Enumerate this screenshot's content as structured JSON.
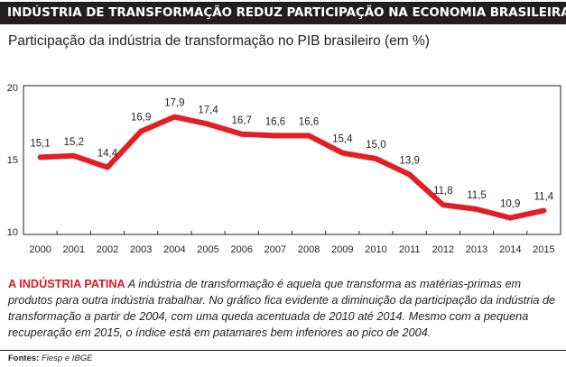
{
  "header": {
    "title": "INDÚSTRIA DE TRANSFORMAÇÃO REDUZ PARTICIPAÇÃO NA ECONOMIA BRASILEIRA"
  },
  "chart_data": {
    "type": "line",
    "title": "Participação da indústria de transformação no PIB brasileiro (em %)",
    "x": [
      "2000",
      "2001",
      "2002",
      "2003",
      "2004",
      "2005",
      "2006",
      "2007",
      "2008",
      "2009",
      "2010",
      "2011",
      "2012",
      "2013",
      "2014",
      "2015"
    ],
    "series": [
      {
        "values": [
          15.1,
          15.2,
          14.4,
          16.9,
          17.9,
          17.4,
          16.7,
          16.6,
          16.6,
          15.4,
          15.0,
          13.9,
          11.8,
          11.5,
          10.9,
          11.4
        ],
        "labels": [
          "15,1",
          "15,2",
          "14,4",
          "16,9",
          "17,9",
          "17,4",
          "16,7",
          "16,6",
          "16,6",
          "15,4",
          "15,0",
          "13,9",
          "11,8",
          "11,5",
          "10,9",
          "11,4"
        ]
      }
    ],
    "yticks": [
      {
        "value": 20,
        "label": "20"
      },
      {
        "value": 15,
        "label": "15"
      },
      {
        "value": 10,
        "label": "10"
      }
    ],
    "ylim": [
      10,
      20
    ],
    "grid": false,
    "line_color": "#e31e24"
  },
  "caption": {
    "lead": "A INDÚSTRIA PATINA",
    "text": " A indústria de transformação é aquela que transforma as matérias-primas em produtos para outra indústria trabalhar. No gráfico fica evidente a diminuição da participação da indústria de transformação a partir de 2004, com uma queda acentuada de 2010 até 2014. Mesmo com a pequena recuperação em 2015, o índice está em patamares bem inferiores ao pico de 2004."
  },
  "sources": {
    "label": "Fontes:",
    "value": "Fiesp e IBGE"
  }
}
